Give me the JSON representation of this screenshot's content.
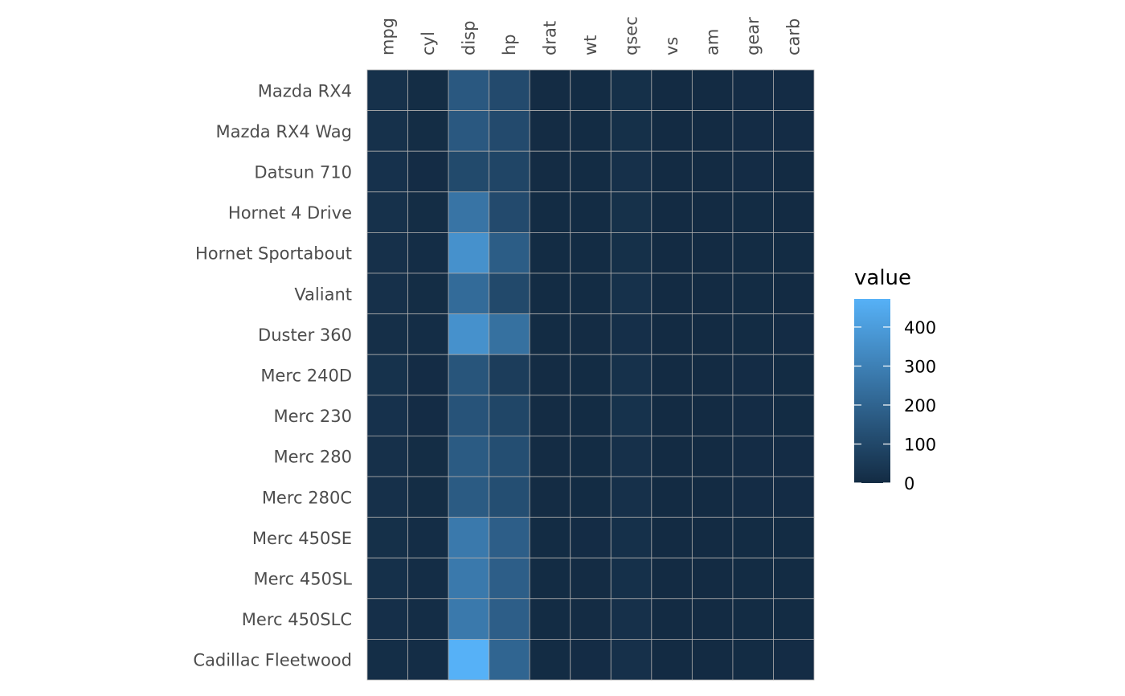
{
  "chart_data": {
    "type": "heatmap",
    "title": "",
    "xlabel": "",
    "ylabel": "",
    "x": [
      "mpg",
      "cyl",
      "disp",
      "hp",
      "drat",
      "wt",
      "qsec",
      "vs",
      "am",
      "gear",
      "carb"
    ],
    "y": [
      "Mazda RX4",
      "Mazda RX4 Wag",
      "Datsun 710",
      "Hornet 4 Drive",
      "Hornet Sportabout",
      "Valiant",
      "Duster 360",
      "Merc 240D",
      "Merc 230",
      "Merc 280",
      "Merc 280C",
      "Merc 450SE",
      "Merc 450SL",
      "Merc 450SLC",
      "Cadillac Fleetwood"
    ],
    "values": [
      [
        21.0,
        6,
        160.0,
        110,
        3.9,
        2.62,
        16.46,
        0,
        1,
        4,
        4
      ],
      [
        21.0,
        6,
        160.0,
        110,
        3.9,
        2.875,
        17.02,
        0,
        1,
        4,
        4
      ],
      [
        22.8,
        4,
        108.0,
        93,
        3.85,
        2.32,
        18.61,
        1,
        1,
        4,
        1
      ],
      [
        21.4,
        6,
        258.0,
        110,
        3.08,
        3.215,
        19.44,
        1,
        0,
        3,
        1
      ],
      [
        18.7,
        8,
        360.0,
        175,
        3.15,
        3.44,
        17.02,
        0,
        0,
        3,
        2
      ],
      [
        18.1,
        6,
        225.0,
        105,
        2.76,
        3.46,
        20.22,
        1,
        0,
        3,
        1
      ],
      [
        14.3,
        8,
        360.0,
        245,
        3.21,
        3.57,
        15.84,
        0,
        0,
        3,
        4
      ],
      [
        24.4,
        4,
        146.7,
        62,
        3.69,
        3.19,
        20.0,
        1,
        0,
        4,
        2
      ],
      [
        22.8,
        4,
        140.8,
        95,
        3.92,
        3.15,
        22.9,
        1,
        0,
        4,
        2
      ],
      [
        19.2,
        6,
        167.6,
        123,
        3.92,
        3.44,
        18.3,
        1,
        0,
        4,
        4
      ],
      [
        17.8,
        6,
        167.6,
        123,
        3.92,
        3.44,
        18.9,
        1,
        0,
        4,
        4
      ],
      [
        16.4,
        8,
        275.8,
        180,
        3.07,
        4.07,
        17.4,
        0,
        0,
        3,
        3
      ],
      [
        17.3,
        8,
        275.8,
        180,
        3.07,
        3.73,
        17.6,
        0,
        0,
        3,
        3
      ],
      [
        15.2,
        8,
        275.8,
        180,
        3.07,
        3.78,
        18.0,
        0,
        0,
        3,
        3
      ],
      [
        10.4,
        8,
        472.0,
        205,
        2.93,
        5.25,
        17.98,
        0,
        0,
        3,
        4
      ]
    ],
    "x_axis_position": "top",
    "x_tick_rotation": -90,
    "legend": {
      "title": "value",
      "position": "right",
      "ticks": [
        0,
        100,
        200,
        300,
        400
      ],
      "range": [
        0,
        472
      ],
      "low_color": "#132B43",
      "high_color": "#56B1F7"
    },
    "grid": true,
    "tile_border_color": "#aaaaaa"
  }
}
